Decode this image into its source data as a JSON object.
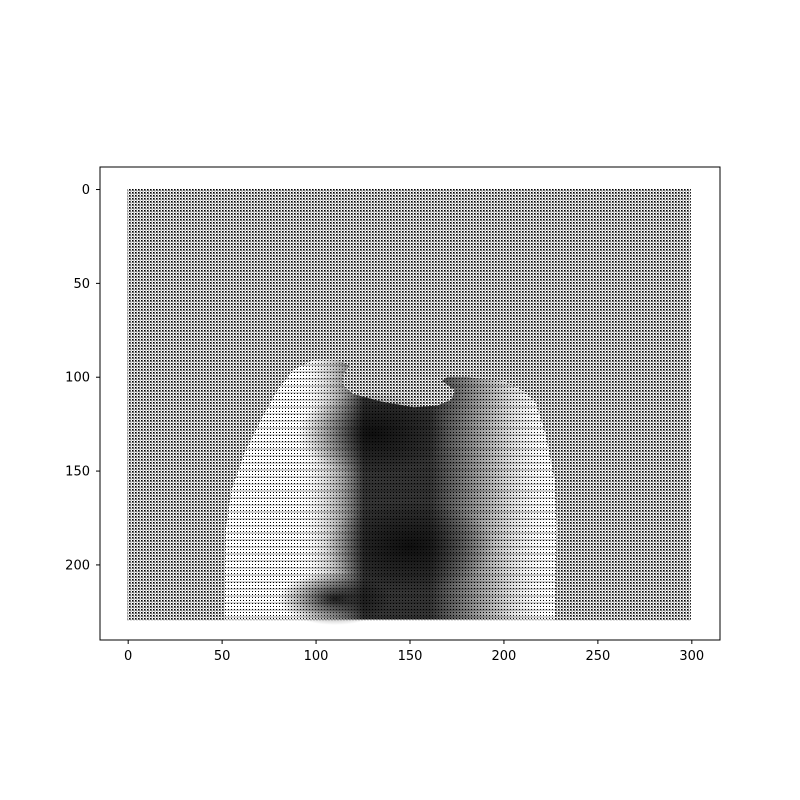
{
  "chart_data": {
    "type": "heatmap",
    "title": "",
    "xlabel": "",
    "ylabel": "",
    "colormap": "grayscale",
    "xlim": [
      -15,
      315
    ],
    "ylim": [
      240,
      -12
    ],
    "image_extent": {
      "cols": 300,
      "rows": 230
    },
    "y_inverted": true,
    "grid": false,
    "x_ticks": [
      {
        "value": 0,
        "label": "0"
      },
      {
        "value": 50,
        "label": "50"
      },
      {
        "value": 100,
        "label": "100"
      },
      {
        "value": 150,
        "label": "150"
      },
      {
        "value": 200,
        "label": "200"
      },
      {
        "value": 250,
        "label": "250"
      },
      {
        "value": 300,
        "label": "300"
      }
    ],
    "y_ticks": [
      {
        "value": 0,
        "label": "0"
      },
      {
        "value": 50,
        "label": "50"
      },
      {
        "value": 100,
        "label": "100"
      },
      {
        "value": 150,
        "label": "150"
      },
      {
        "value": 200,
        "label": "200"
      }
    ],
    "colors": {
      "background": "#ffffff",
      "axes": "#000000",
      "dark": "#000000",
      "light": "#ffffff"
    }
  }
}
